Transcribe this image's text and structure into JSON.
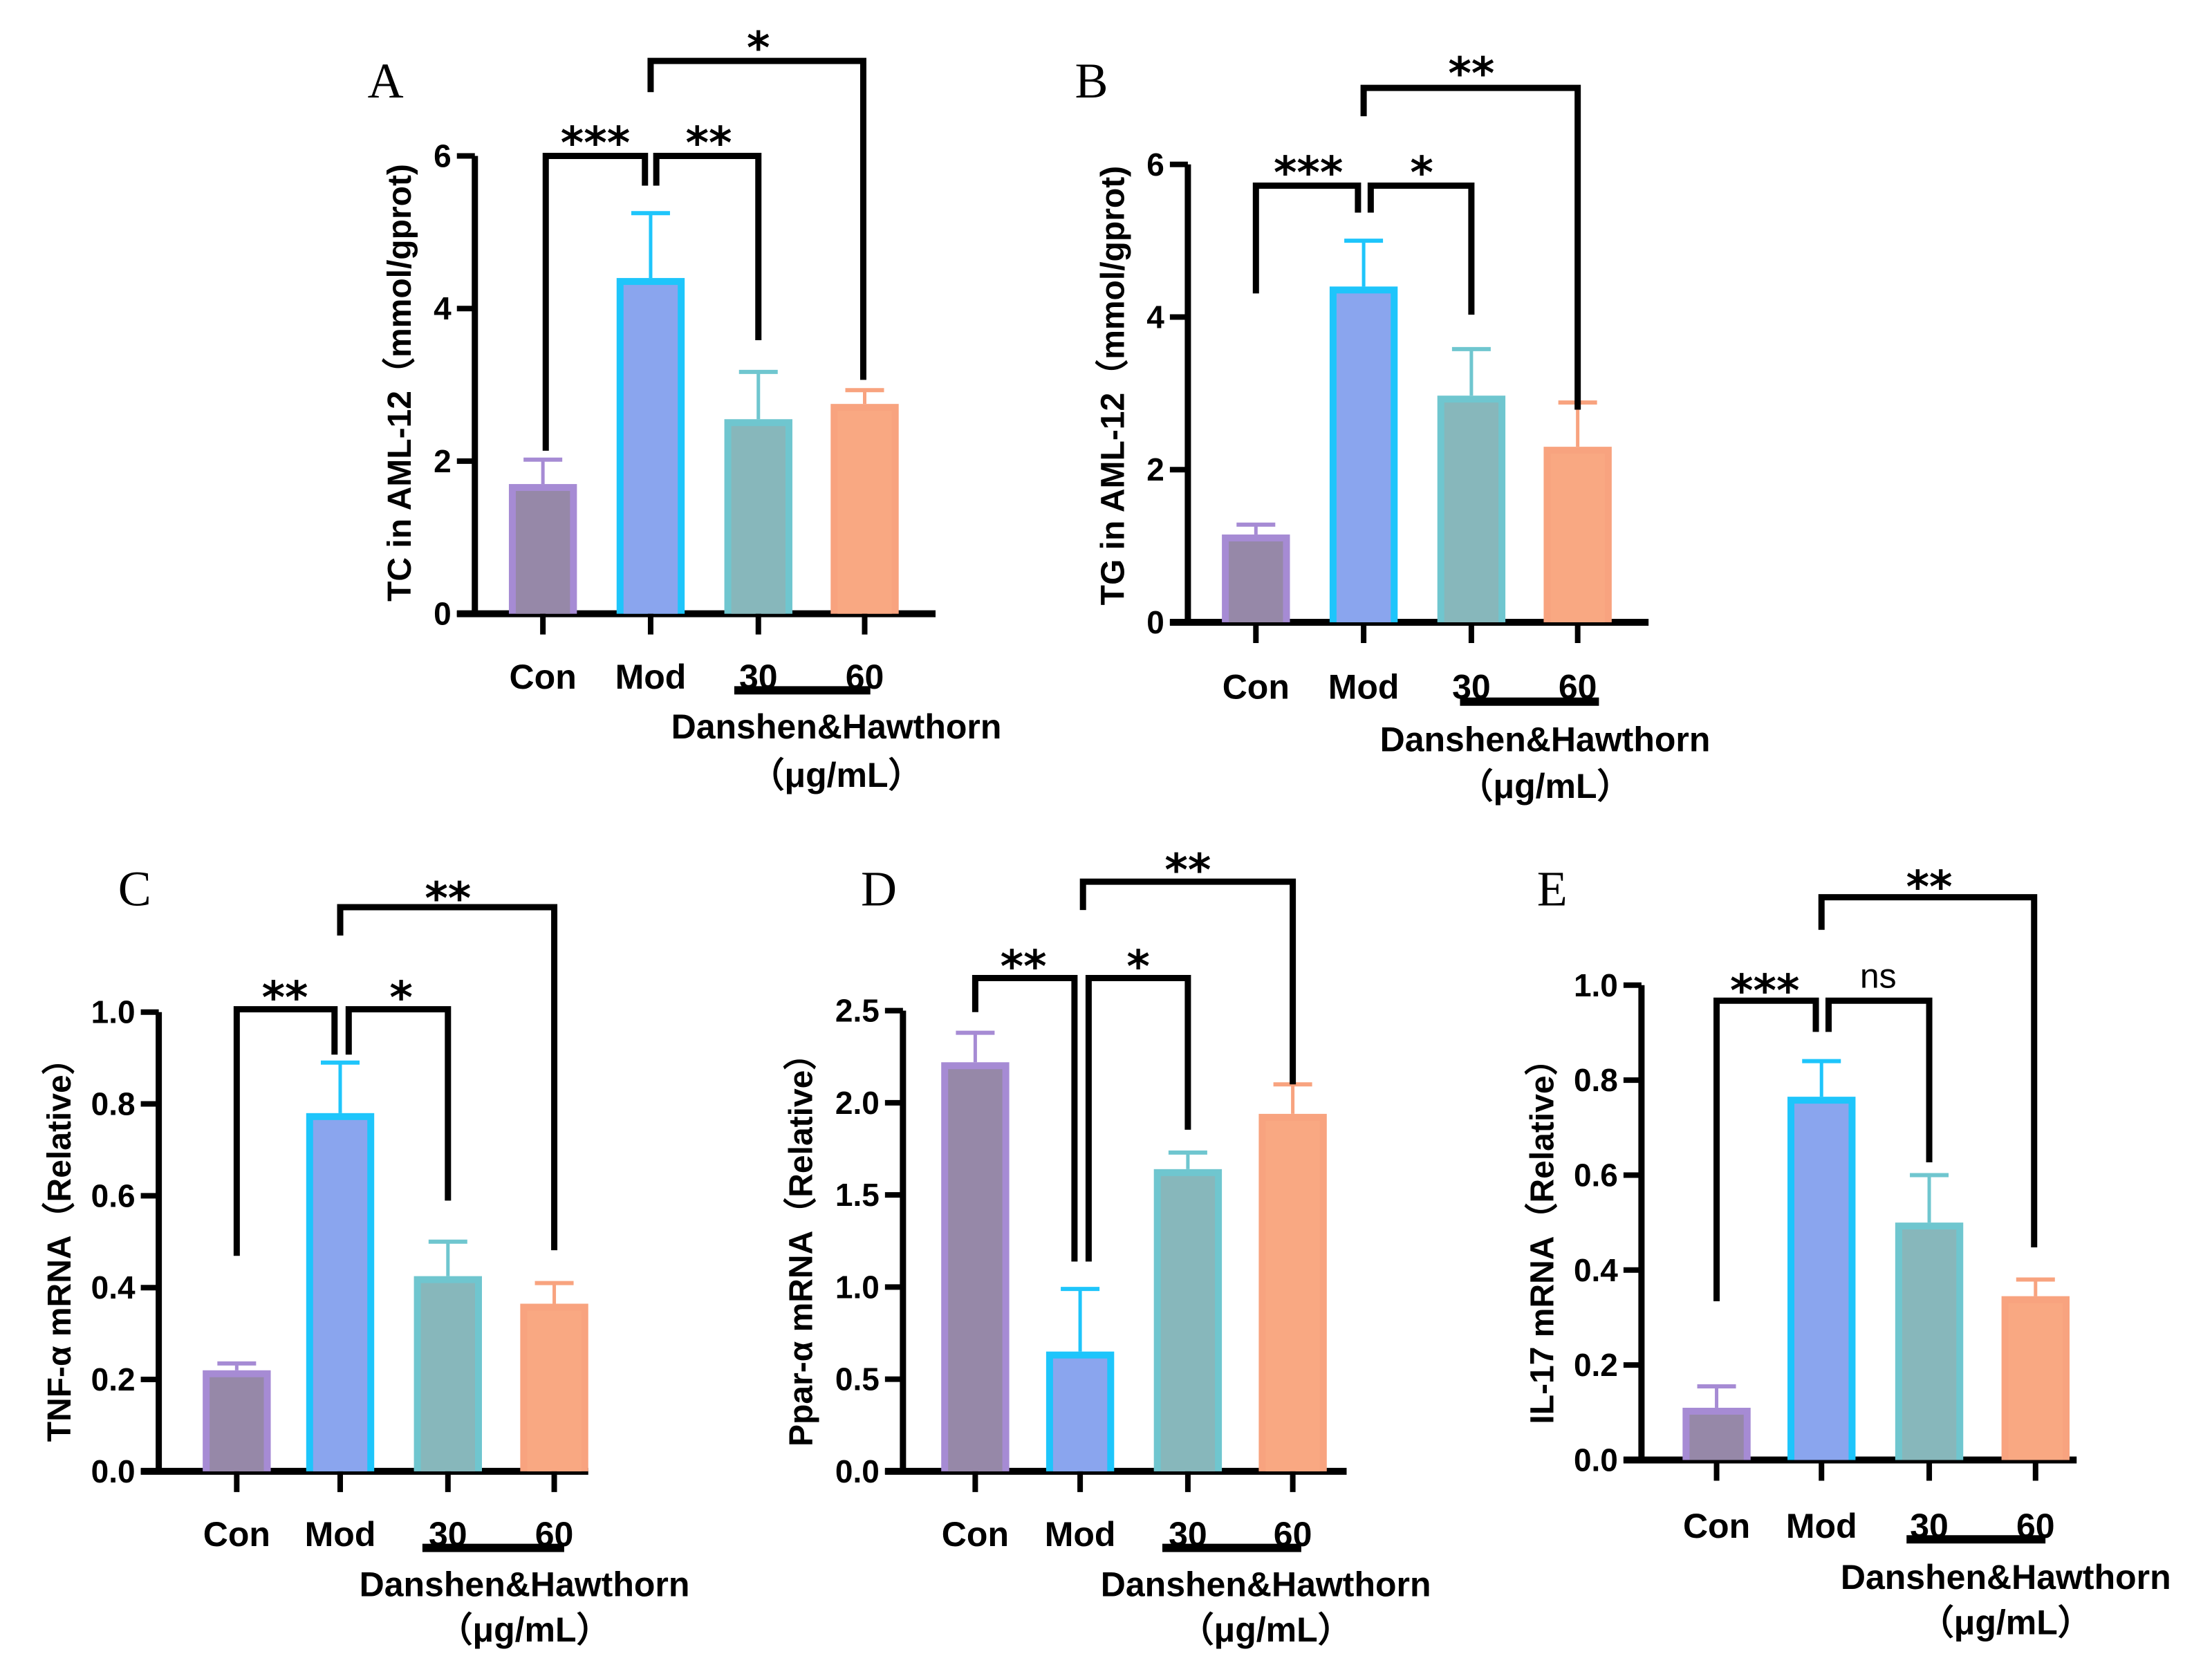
{
  "chart_data": [
    {
      "panel": "A",
      "type": "bar",
      "ylabel": "TC in AML-12（mmol/gprot)",
      "categories": [
        "Con",
        "Mod",
        "30",
        "60"
      ],
      "values": [
        1.7,
        4.4,
        2.55,
        2.75
      ],
      "error_upper": [
        2.02,
        5.25,
        3.17,
        2.93
      ],
      "ylim": [
        0,
        6
      ],
      "yticks": [
        "0",
        "2",
        "4",
        "6"
      ],
      "ytick_values": [
        0,
        2,
        4,
        6
      ],
      "group_label": "Danshen&Hawthorn",
      "group_unit": "（μg/mL）",
      "significance": [
        {
          "from": "Con",
          "to": "Mod",
          "label": "***"
        },
        {
          "from": "Mod",
          "to": "30",
          "label": "**"
        },
        {
          "from": "Mod",
          "to": "60",
          "label": "*"
        }
      ]
    },
    {
      "panel": "B",
      "type": "bar",
      "ylabel": "TG in AML-12（mmol/gprot)",
      "categories": [
        "Con",
        "Mod",
        "30",
        "60"
      ],
      "values": [
        1.15,
        4.4,
        2.97,
        2.3
      ],
      "error_upper": [
        1.28,
        5.0,
        3.58,
        2.88
      ],
      "ylim": [
        0,
        6
      ],
      "yticks": [
        "0",
        "2",
        "4",
        "6"
      ],
      "ytick_values": [
        0,
        2,
        4,
        6
      ],
      "group_label": "Danshen&Hawthorn",
      "group_unit": "（μg/mL）",
      "significance": [
        {
          "from": "Con",
          "to": "Mod",
          "label": "***"
        },
        {
          "from": "Mod",
          "to": "30",
          "label": "*"
        },
        {
          "from": "Mod",
          "to": "60",
          "label": "**"
        }
      ]
    },
    {
      "panel": "C",
      "type": "bar",
      "ylabel": "TNF-α mRNA（Relative）",
      "categories": [
        "Con",
        "Mod",
        "30",
        "60"
      ],
      "values": [
        0.22,
        0.78,
        0.425,
        0.365
      ],
      "error_upper": [
        0.235,
        0.89,
        0.5,
        0.41
      ],
      "ylim": [
        0,
        1.0
      ],
      "yticks": [
        "0.0",
        "0.2",
        "0.4",
        "0.6",
        "0.8",
        "1.0"
      ],
      "ytick_values": [
        0,
        0.2,
        0.4,
        0.6,
        0.8,
        1.0
      ],
      "group_label": "Danshen&Hawthorn",
      "group_unit": "（μg/mL）",
      "significance": [
        {
          "from": "Con",
          "to": "Mod",
          "label": "**"
        },
        {
          "from": "Mod",
          "to": "30",
          "label": "*"
        },
        {
          "from": "Mod",
          "to": "60",
          "label": "**"
        }
      ]
    },
    {
      "panel": "D",
      "type": "bar",
      "ylabel": "Ppar-α mRNA（Relative）",
      "categories": [
        "Con",
        "Mod",
        "30",
        "60"
      ],
      "values": [
        2.22,
        0.65,
        1.64,
        1.94
      ],
      "error_upper": [
        2.38,
        0.99,
        1.73,
        2.1
      ],
      "ylim": [
        0,
        2.5
      ],
      "yticks": [
        "0.0",
        "0.5",
        "1.0",
        "1.5",
        "2.0",
        "2.5"
      ],
      "ytick_values": [
        0,
        0.5,
        1.0,
        1.5,
        2.0,
        2.5
      ],
      "group_label": "Danshen&Hawthorn",
      "group_unit": "（μg/mL）",
      "significance": [
        {
          "from": "Con",
          "to": "Mod",
          "label": "**"
        },
        {
          "from": "Mod",
          "to": "30",
          "label": "*"
        },
        {
          "from": "Mod",
          "to": "60",
          "label": "**"
        }
      ]
    },
    {
      "panel": "E",
      "type": "bar",
      "ylabel": "IL-17 mRNA（Relative）",
      "categories": [
        "Con",
        "Mod",
        "30",
        "60"
      ],
      "values": [
        0.11,
        0.765,
        0.5,
        0.345
      ],
      "error_upper": [
        0.155,
        0.84,
        0.6,
        0.38
      ],
      "ylim": [
        0,
        1.0
      ],
      "yticks": [
        "0.0",
        "0.2",
        "0.4",
        "0.6",
        "0.8",
        "1.0"
      ],
      "ytick_values": [
        0,
        0.2,
        0.4,
        0.6,
        0.8,
        1.0
      ],
      "group_label": "Danshen&Hawthorn",
      "group_unit": "（μg/mL）",
      "significance": [
        {
          "from": "Con",
          "to": "Mod",
          "label": "***"
        },
        {
          "from": "Mod",
          "to": "30",
          "label": "ns"
        },
        {
          "from": "Mod",
          "to": "60",
          "label": "**"
        }
      ]
    }
  ],
  "series_colors": {
    "Con": {
      "fill": "#9688A8",
      "border": "#A68BD4"
    },
    "Mod": {
      "fill": "#8AA5EE",
      "border": "#1EC5FB"
    },
    "30": {
      "fill": "#87B7BB",
      "border": "#6FC6CF"
    },
    "60": {
      "fill": "#F9A882",
      "border": "#F8A37F"
    }
  }
}
